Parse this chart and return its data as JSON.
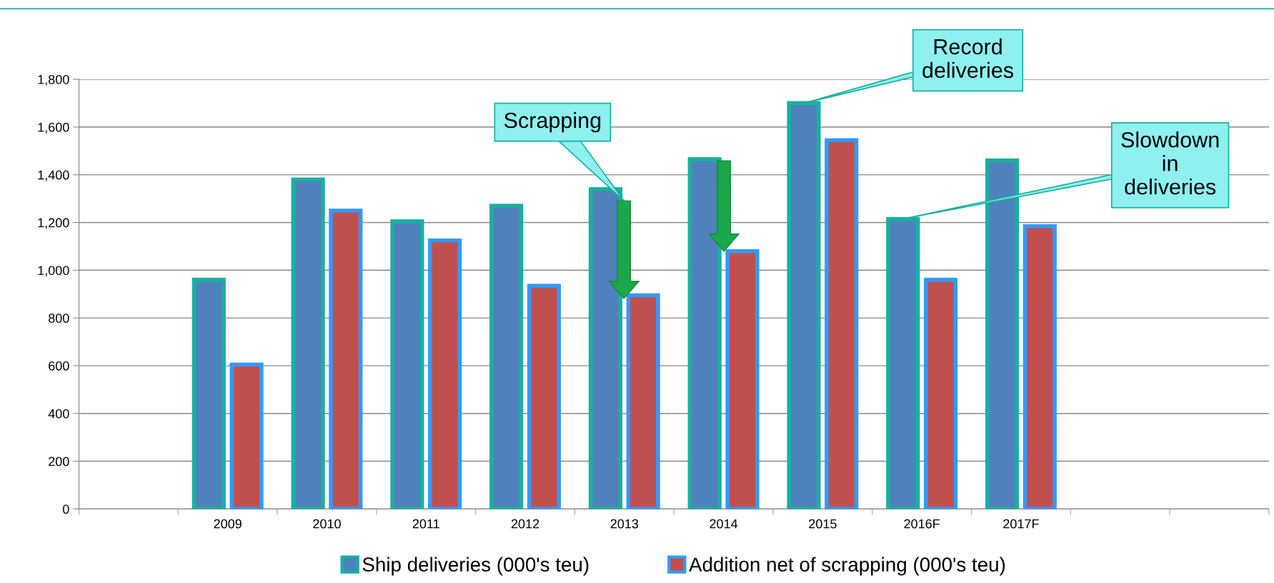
{
  "chart_data": {
    "type": "bar",
    "categories": [
      null,
      "2009",
      "2010",
      "2011",
      "2012",
      "2013",
      "2014",
      "2015",
      "2016F",
      "2017F",
      null,
      null
    ],
    "series": [
      {
        "name": "Ship deliveries (000's teu)",
        "color": "#4f81bd",
        "values": [
          null,
          960,
          1380,
          1205,
          1270,
          1340,
          1465,
          1700,
          1215,
          1460,
          null,
          null
        ]
      },
      {
        "name": "Addition net of scrapping (000's teu)",
        "color": "#c0504d",
        "values": [
          null,
          605,
          1250,
          1125,
          935,
          895,
          1080,
          1545,
          960,
          1185,
          null,
          null
        ]
      }
    ],
    "ylim": [
      0,
      1800
    ],
    "yticks": [
      {
        "value": 0,
        "label": "0"
      },
      {
        "value": 200,
        "label": "200"
      },
      {
        "value": 400,
        "label": "400"
      },
      {
        "value": 600,
        "label": "600"
      },
      {
        "value": 800,
        "label": "800"
      },
      {
        "value": 1000,
        "label": "1,000"
      },
      {
        "value": 1200,
        "label": "1,200"
      },
      {
        "value": 1400,
        "label": "1,400"
      },
      {
        "value": 1600,
        "label": "1,600"
      },
      {
        "value": 1800,
        "label": "1,800"
      }
    ],
    "grid": "y",
    "legend": "bottom",
    "annotations": [
      "Scrapping",
      "Record\ndeliveries",
      "Slowdown\nin\ndeliveries"
    ]
  }
}
